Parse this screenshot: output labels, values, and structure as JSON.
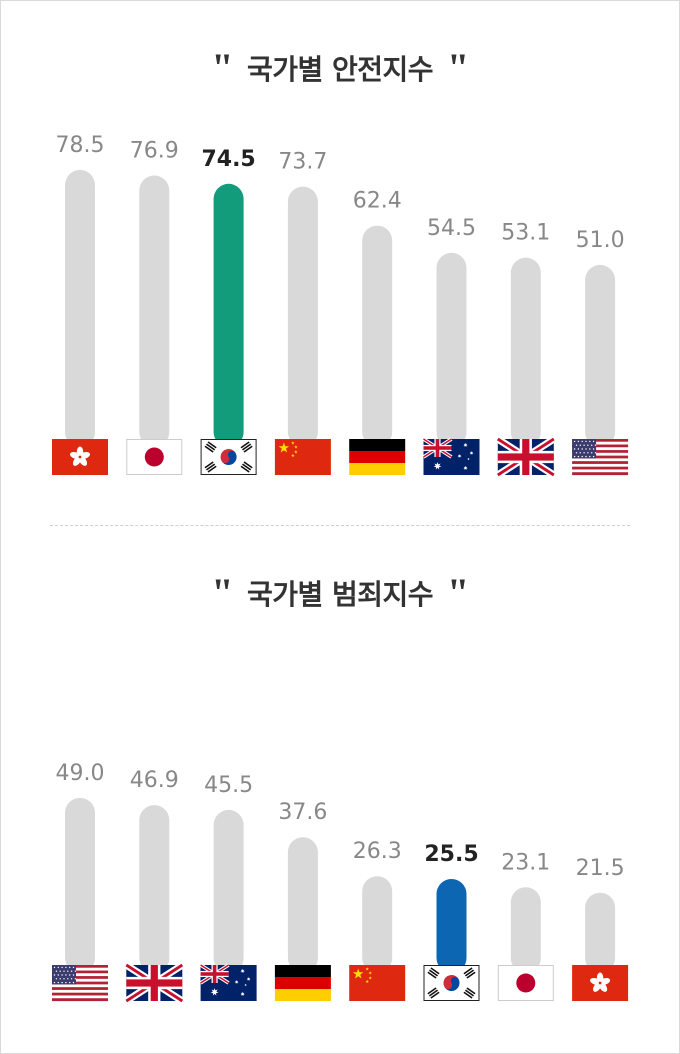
{
  "chart_data": [
    {
      "type": "bar",
      "title": "국가별 안전지수",
      "categories": [
        "hong-kong",
        "japan",
        "south-korea",
        "china",
        "germany",
        "australia",
        "united-kingdom",
        "united-states"
      ],
      "values": [
        78.5,
        76.9,
        74.5,
        73.7,
        62.4,
        54.5,
        53.1,
        51.0
      ],
      "value_labels": [
        "78.5",
        "76.9",
        "74.5",
        "73.7",
        "62.4",
        "54.5",
        "53.1",
        "51.0"
      ],
      "highlight": "south-korea",
      "highlight_color": "#129c7c",
      "bar_color": "#d9d9d9",
      "label_color": "#888888",
      "highlight_label_color": "#222222",
      "legend": "none",
      "grid": false
    },
    {
      "type": "bar",
      "title": "국가별 범죄지수",
      "categories": [
        "united-states",
        "united-kingdom",
        "australia",
        "germany",
        "china",
        "south-korea",
        "japan",
        "hong-kong"
      ],
      "values": [
        49.0,
        46.9,
        45.5,
        37.6,
        26.3,
        25.5,
        23.1,
        21.5
      ],
      "value_labels": [
        "49.0",
        "46.9",
        "45.5",
        "37.6",
        "26.3",
        "25.5",
        "23.1",
        "21.5"
      ],
      "highlight": "south-korea",
      "highlight_color": "#0c66b2",
      "bar_color": "#d9d9d9",
      "label_color": "#888888",
      "highlight_label_color": "#222222",
      "legend": "none",
      "grid": false
    }
  ],
  "titles": {
    "safety": "국가별 안전지수",
    "crime": "국가별 범죄지수",
    "open_quote": "\"",
    "close_quote": "\""
  }
}
